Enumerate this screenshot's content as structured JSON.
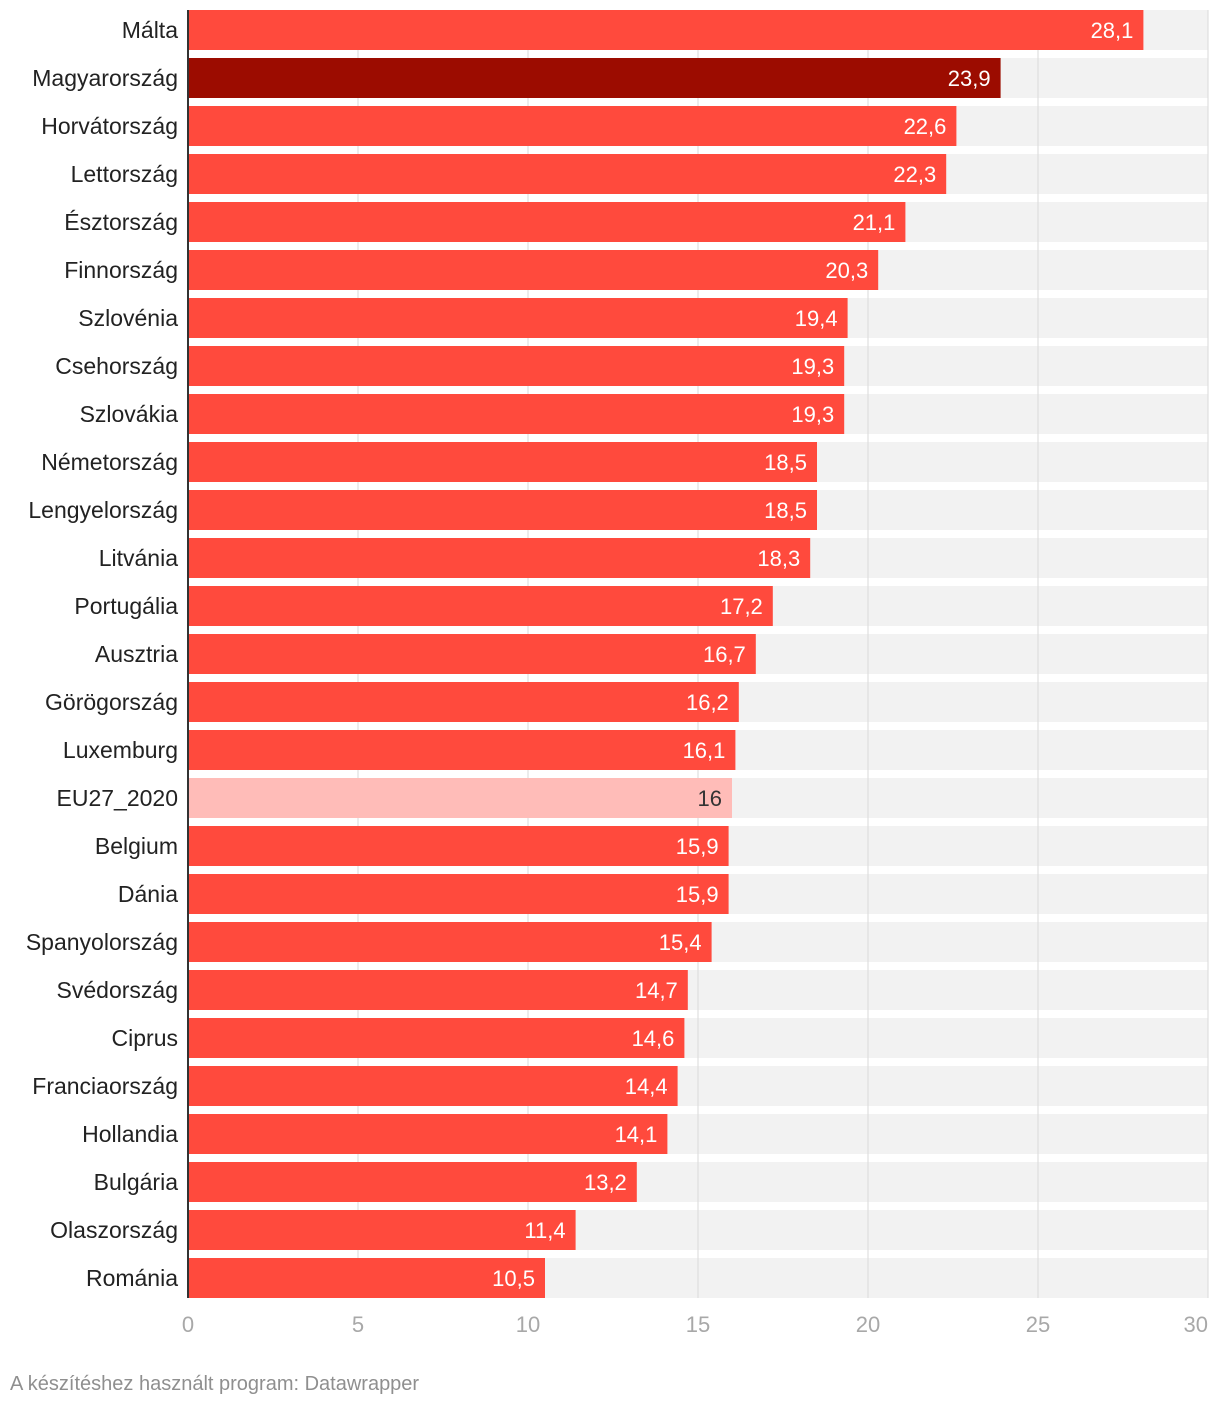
{
  "chart_data": {
    "type": "bar",
    "orientation": "horizontal",
    "categories": [
      "Málta",
      "Magyarország",
      "Horvátország",
      "Lettország",
      "Észtország",
      "Finnország",
      "Szlovénia",
      "Csehország",
      "Szlovákia",
      "Németország",
      "Lengyelország",
      "Litvánia",
      "Portugália",
      "Ausztria",
      "Görögország",
      "Luxemburg",
      "EU27_2020",
      "Belgium",
      "Dánia",
      "Spanyolország",
      "Svédország",
      "Ciprus",
      "Franciaország",
      "Hollandia",
      "Bulgária",
      "Olaszország",
      "Románia"
    ],
    "values": [
      28.1,
      23.9,
      22.6,
      22.3,
      21.1,
      20.3,
      19.4,
      19.3,
      19.3,
      18.5,
      18.5,
      18.3,
      17.2,
      16.7,
      16.2,
      16.1,
      16,
      15.9,
      15.9,
      15.4,
      14.7,
      14.6,
      14.4,
      14.1,
      13.2,
      11.4,
      10.5
    ],
    "value_labels": [
      "28,1",
      "23,9",
      "22,6",
      "22,3",
      "21,1",
      "20,3",
      "19,4",
      "19,3",
      "19,3",
      "18,5",
      "18,5",
      "18,3",
      "17,2",
      "16,7",
      "16,2",
      "16,1",
      "16",
      "15,9",
      "15,9",
      "15,4",
      "14,7",
      "14,6",
      "14,4",
      "14,1",
      "13,2",
      "11,4",
      "10,5"
    ],
    "xlim": [
      0,
      30
    ],
    "ticks": [
      0,
      5,
      10,
      15,
      20,
      25,
      30
    ],
    "grid": true,
    "highlight": {
      "Magyarország": "#9c0c00",
      "EU27_2020": "#ffbcb8"
    },
    "colors": {
      "bar": "#ff4a3d",
      "background_bar": "#f2f2f2",
      "label_light": "#ffffff",
      "label_dark": "#333333"
    },
    "title": "",
    "xlabel": "",
    "ylabel": ""
  },
  "footer": {
    "text": "A készítéshez használt program: Datawrapper"
  }
}
